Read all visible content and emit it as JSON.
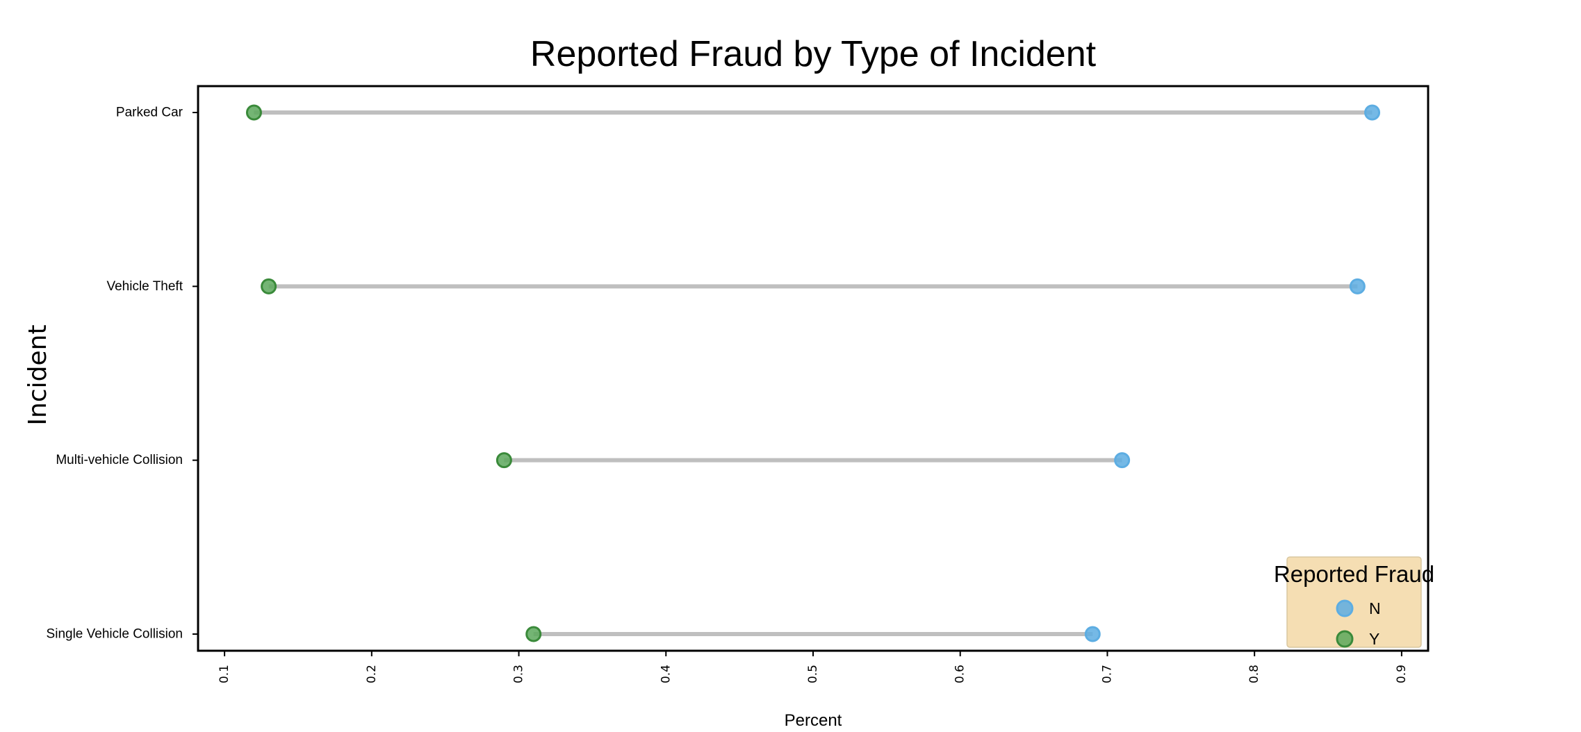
{
  "chart_data": {
    "type": "dumbbell",
    "title": "Reported Fraud by Type of Incident",
    "xlabel": "Percent",
    "ylabel": "Incident",
    "xlim": [
      0.082,
      0.918
    ],
    "x_ticks": [
      0.1,
      0.2,
      0.3,
      0.4,
      0.5,
      0.6,
      0.7,
      0.8,
      0.9
    ],
    "x_tick_labels": [
      "0.1",
      "0.2",
      "0.3",
      "0.4",
      "0.5",
      "0.6",
      "0.7",
      "0.8",
      "0.9"
    ],
    "categories": [
      "Parked Car",
      "Vehicle Theft",
      "Multi-vehicle Collision",
      "Single Vehicle Collision"
    ],
    "series": [
      {
        "name": "N",
        "color": "#5DADE2",
        "values": [
          0.88,
          0.87,
          0.71,
          0.69
        ]
      },
      {
        "name": "Y",
        "color": "#5CA85C",
        "values": [
          0.12,
          0.13,
          0.29,
          0.31
        ]
      }
    ],
    "connector_color": "#bfbfbf",
    "grid": false,
    "legend": {
      "title": "Reported Fraud",
      "placement": "lower-right",
      "background": "#F5DEB3"
    }
  }
}
